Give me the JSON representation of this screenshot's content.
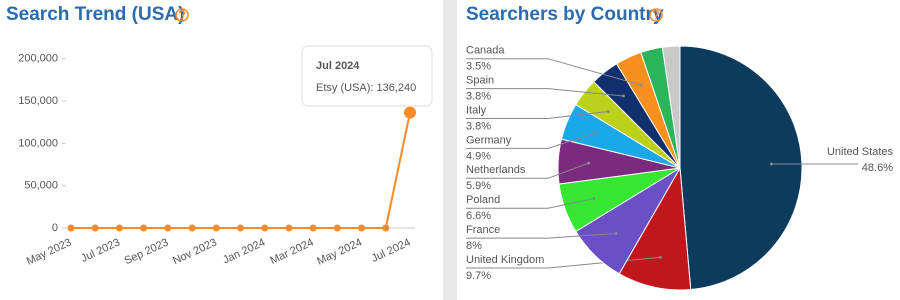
{
  "chart_data": [
    {
      "type": "line",
      "title": "Search Trend (USA)",
      "categories": [
        "May 2023",
        null,
        "Jul 2023",
        null,
        "Sep 2023",
        null,
        "Nov 2023",
        null,
        "Jan 2024",
        null,
        "Mar 2024",
        null,
        "May 2024",
        null,
        "Jul 2024"
      ],
      "values": [
        0,
        0,
        0,
        0,
        0,
        0,
        0,
        0,
        0,
        0,
        0,
        0,
        0,
        0,
        136240
      ],
      "color": "#f68b2c",
      "ylim": [
        0,
        215000
      ],
      "yticks": [
        0,
        {
          "value": 50000,
          "label": "50,000"
        },
        {
          "value": 100000,
          "label": "100,000"
        },
        {
          "value": 150000,
          "label": "150,000"
        },
        {
          "value": 200000,
          "label": "200,000"
        }
      ],
      "grid": false,
      "tooltip": "Etsy (USA): 136,240"
    },
    {
      "type": "pie",
      "title": "Searchers by Country",
      "categories": [
        "United States",
        "United Kingdom",
        "France",
        "Poland",
        "Netherlands",
        "Germany",
        "Italy",
        "Spain",
        "Canada",
        null,
        null
      ],
      "values": [
        48.6,
        9.7,
        8,
        6.6,
        5.9,
        4.9,
        3.8,
        3.8,
        3.5,
        2.9,
        2.3
      ],
      "value_labels": [
        "48.6%",
        "9.7%",
        "8%",
        "6.6%",
        "5.9%",
        "4.9%",
        "3.8%",
        "3.8%",
        "3.5%",
        null,
        null
      ],
      "colors": [
        "#0d3b5e",
        "#c1161b",
        "#6a4fc6",
        "#35e632",
        "#7b2a7f",
        "#1aa8e8",
        "#bcd11a",
        "#13306e",
        "#f7901e",
        "#2ab55a",
        "#c9c9c9"
      ]
    }
  ]
}
